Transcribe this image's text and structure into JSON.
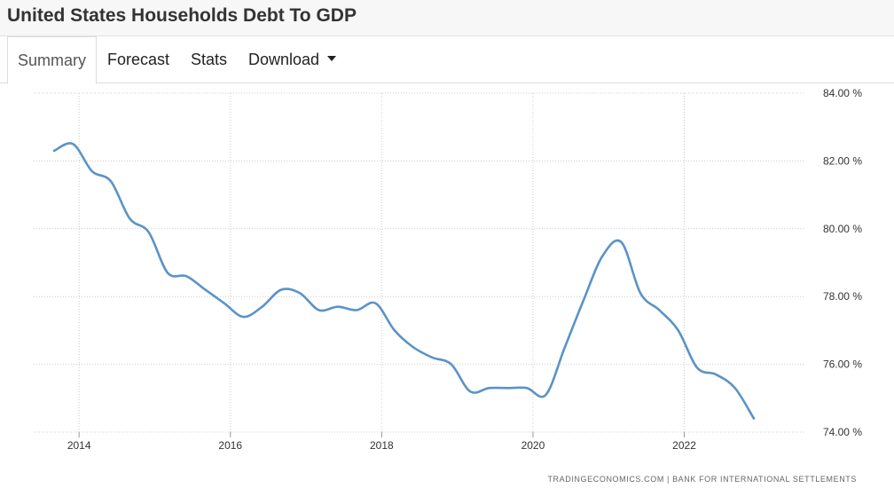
{
  "header": {
    "title": "United States Households Debt To GDP"
  },
  "tabs": [
    {
      "label": "Summary",
      "active": true
    },
    {
      "label": "Forecast"
    },
    {
      "label": "Stats"
    },
    {
      "label": "Download",
      "has_dropdown": true
    }
  ],
  "credit": "TRADINGECONOMICS.COM  |  BANK FOR INTERNATIONAL SETTLEMENTS",
  "colors": {
    "line": "#5b93c7",
    "grid": "#cccccc"
  },
  "chart_data": {
    "type": "line",
    "title": "",
    "xlabel": "",
    "ylabel": "",
    "x_ticks": [
      2014,
      2016,
      2018,
      2020,
      2022
    ],
    "y_ticks": [
      74,
      76,
      78,
      80,
      82,
      84
    ],
    "y_tick_suffix": " %",
    "xlim": [
      2013.4,
      2023.6
    ],
    "ylim": [
      74,
      84
    ],
    "grid": true,
    "series": [
      {
        "x": [
          2013.67,
          2013.92,
          2014.17,
          2014.42,
          2014.67,
          2014.92,
          2015.17,
          2015.42,
          2015.67,
          2015.92,
          2016.17,
          2016.42,
          2016.67,
          2016.92,
          2017.17,
          2017.42,
          2017.67,
          2017.92,
          2018.17,
          2018.42,
          2018.67,
          2018.92,
          2019.17,
          2019.42,
          2019.67,
          2019.92,
          2020.17,
          2020.42,
          2020.67,
          2020.92,
          2021.17,
          2021.42,
          2021.67,
          2021.92,
          2022.17,
          2022.42,
          2022.67,
          2022.92
        ],
        "values": [
          82.3,
          82.5,
          81.7,
          81.4,
          80.3,
          79.9,
          78.7,
          78.6,
          78.2,
          77.8,
          77.4,
          77.7,
          78.2,
          78.1,
          77.6,
          77.7,
          77.6,
          77.8,
          77.0,
          76.5,
          76.2,
          76.0,
          75.2,
          75.3,
          75.3,
          75.3,
          75.1,
          76.5,
          77.9,
          79.2,
          79.6,
          78.1,
          77.6,
          77.0,
          75.9,
          75.7,
          75.3,
          74.4
        ]
      }
    ]
  }
}
